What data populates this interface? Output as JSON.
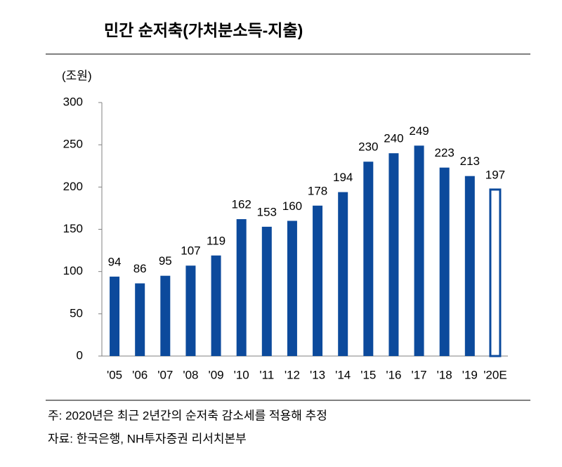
{
  "chart_data": {
    "type": "bar",
    "title": "민간 순저축(가처분소득-지출)",
    "unit": "(조원)",
    "categories": [
      "'05",
      "'06",
      "'07",
      "'08",
      "'09",
      "'10",
      "'11",
      "'12",
      "'13",
      "'14",
      "'15",
      "'16",
      "'17",
      "'18",
      "'19",
      "'20E"
    ],
    "values": [
      94,
      86,
      95,
      107,
      119,
      162,
      153,
      160,
      178,
      194,
      230,
      240,
      249,
      223,
      213,
      197
    ],
    "color": "#0c4a9c",
    "hollow_categories": [
      "'20E"
    ],
    "ylim": [
      0,
      300
    ],
    "yticks": [
      0,
      50,
      100,
      150,
      200,
      250,
      300
    ],
    "grid": false,
    "notes": [
      "주: 2020년은 최근 2년간의 순저축 감소세를 적용해 추정",
      "자료: 한국은행, NH투자증권 리서치본부"
    ]
  }
}
